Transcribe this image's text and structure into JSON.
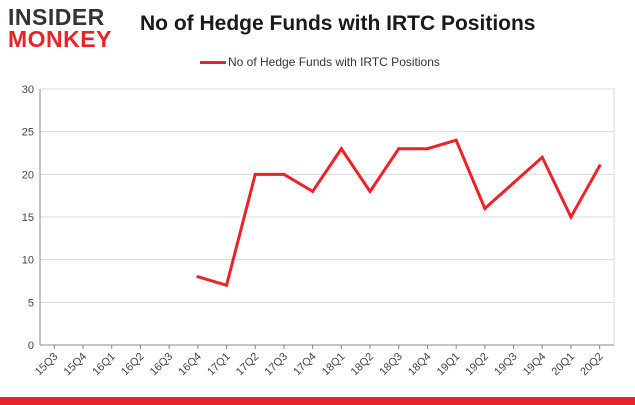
{
  "logo": {
    "line1": "INSIDER",
    "line2": "MONKEY"
  },
  "title": "No of Hedge Funds with IRTC Positions",
  "legend": {
    "label": "No of Hedge Funds with IRTC Positions"
  },
  "colors": {
    "series": "#e8232a",
    "grid": "#dcdcdc",
    "axis": "#888888"
  },
  "chart_data": {
    "type": "line",
    "title": "No of Hedge Funds with IRTC Positions",
    "xlabel": "",
    "ylabel": "",
    "ylim": [
      0,
      30
    ],
    "yticks": [
      0,
      5,
      10,
      15,
      20,
      25,
      30
    ],
    "grid": true,
    "legend_position": "top",
    "categories": [
      "15Q3",
      "15Q4",
      "16Q1",
      "16Q2",
      "16Q3",
      "16Q4",
      "17Q1",
      "17Q2",
      "17Q3",
      "17Q4",
      "18Q1",
      "18Q2",
      "18Q3",
      "18Q4",
      "19Q1",
      "19Q2",
      "19Q3",
      "19Q4",
      "20Q1",
      "20Q2"
    ],
    "series": [
      {
        "name": "No of Hedge Funds with IRTC Positions",
        "values": [
          null,
          null,
          null,
          null,
          null,
          8,
          7,
          20,
          20,
          18,
          23,
          18,
          23,
          23,
          24,
          16,
          19,
          22,
          15,
          21
        ]
      }
    ]
  }
}
